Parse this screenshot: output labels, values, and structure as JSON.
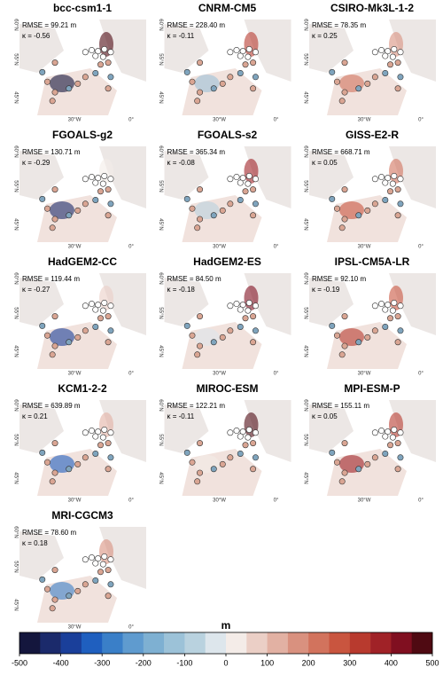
{
  "panels": [
    {
      "title": "bcc-csm1-1",
      "rmse": "RMSE = 99.21 m",
      "kappa": "κ = -0.56"
    },
    {
      "title": "CNRM-CM5",
      "rmse": "RMSE = 228.40 m",
      "kappa": "κ = -0.11"
    },
    {
      "title": "CSIRO-Mk3L-1-2",
      "rmse": "RMSE = 78.35 m",
      "kappa": "κ = 0.25"
    },
    {
      "title": "FGOALS-g2",
      "rmse": "RMSE = 130.71 m",
      "kappa": "κ = -0.29"
    },
    {
      "title": "FGOALS-s2",
      "rmse": "RMSE = 365.34 m",
      "kappa": "κ = -0.08"
    },
    {
      "title": "GISS-E2-R",
      "rmse": "RMSE = 668.71 m",
      "kappa": "κ = 0.05"
    },
    {
      "title": "HadGEM2-CC",
      "rmse": "RMSE = 119.44 m",
      "kappa": "κ = -0.27"
    },
    {
      "title": "HadGEM2-ES",
      "rmse": "RMSE = 84.50 m",
      "kappa": "κ = -0.18"
    },
    {
      "title": "IPSL-CM5A-LR",
      "rmse": "RMSE = 92.10 m",
      "kappa": "κ = -0.19"
    },
    {
      "title": "KCM1-2-2",
      "rmse": "RMSE = 639.89 m",
      "kappa": "κ = 0.21"
    },
    {
      "title": "MIROC-ESM",
      "rmse": "RMSE = 122.21 m",
      "kappa": "κ = -0.11"
    },
    {
      "title": "MPI-ESM-P",
      "rmse": "RMSE = 155.11 m",
      "kappa": "κ = 0.05"
    },
    {
      "title": "MRI-CGCM3",
      "rmse": "RMSE = 78.60 m",
      "kappa": "κ = 0.18"
    }
  ],
  "axis_labels": {
    "lat60": "60°N",
    "lat55": "55°N",
    "lat45": "45°N",
    "lon30": "30°W",
    "lon0": "0°"
  },
  "colorbar": {
    "label": "m",
    "ticks": [
      -500,
      -400,
      -300,
      -200,
      -100,
      0,
      100,
      200,
      300,
      400,
      500
    ],
    "colors": [
      "#14163d",
      "#1b2a6b",
      "#1a3f9a",
      "#1f5fbf",
      "#3a7fc8",
      "#5f9bcf",
      "#7eb0d2",
      "#9cc2d8",
      "#b9d2df",
      "#dde6ec",
      "#f4ece8",
      "#ebcfc6",
      "#e2b1a3",
      "#d9917f",
      "#d2735d",
      "#c9553f",
      "#b83a2e",
      "#a02227",
      "#800f20",
      "#4f0a12"
    ]
  }
}
